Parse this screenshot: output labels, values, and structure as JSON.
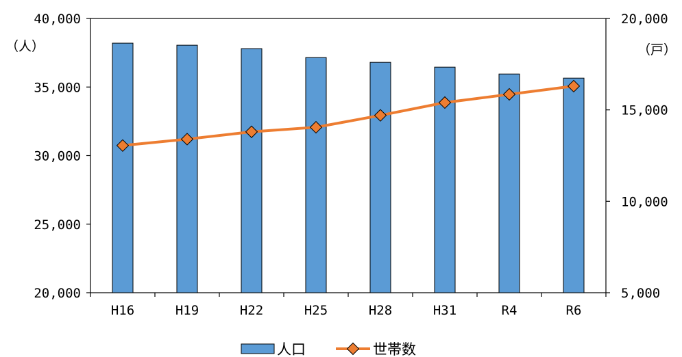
{
  "chart_data": {
    "type": "bar+line",
    "categories": [
      "H16",
      "H19",
      "H22",
      "H25",
      "H28",
      "H31",
      "R4",
      "R6"
    ],
    "series": [
      {
        "name": "人口",
        "type": "bar",
        "axis": "left",
        "values": [
          38200,
          38050,
          37800,
          37150,
          36800,
          36450,
          35950,
          35650
        ],
        "color": "#5B9BD5"
      },
      {
        "name": "世帯数",
        "type": "line",
        "axis": "right",
        "values": [
          13050,
          13400,
          13800,
          14050,
          14700,
          15400,
          15850,
          16300
        ],
        "color": "#ED7D31"
      }
    ],
    "y_left": {
      "unit_label": "（人）",
      "ylim": [
        20000,
        40000
      ],
      "ticks": [
        "20,000",
        "25,000",
        "30,000",
        "35,000",
        "40,000"
      ]
    },
    "y_right": {
      "unit_label": "（戸）",
      "ylim": [
        5000,
        20000
      ],
      "ticks": [
        "5,000",
        "10,000",
        "15,000",
        "20,000"
      ]
    },
    "legend_position": "bottom-center"
  }
}
